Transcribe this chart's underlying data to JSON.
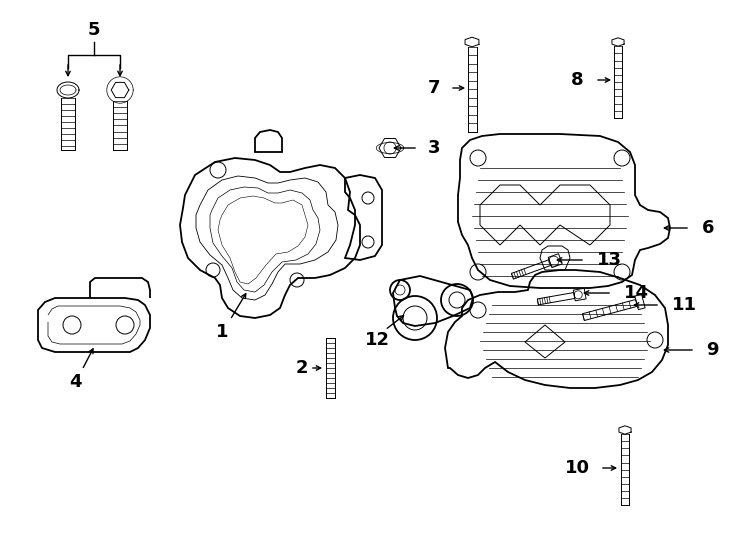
{
  "bg_color": "#ffffff",
  "line_color": "#000000",
  "fig_width": 7.34,
  "fig_height": 5.4,
  "dpi": 100,
  "lw_main": 1.3,
  "lw_inner": 0.7,
  "lw_thin": 0.5,
  "fontsize_label": 11,
  "fontsize_number": 13
}
